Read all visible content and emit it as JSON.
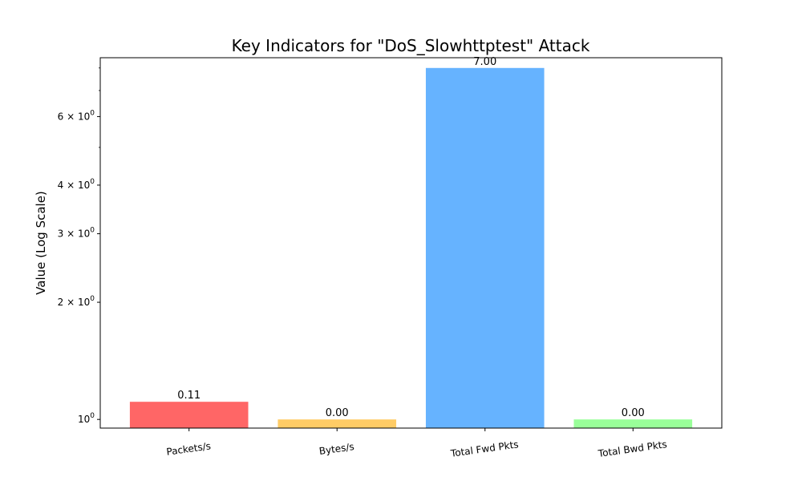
{
  "chart_data": {
    "type": "bar",
    "title": "Key Indicators for \"DoS_Slowhttptest\" Attack",
    "xlabel": "",
    "ylabel": "Value (Log Scale)",
    "yscale": "log",
    "ylim": [
      0.95,
      8.5
    ],
    "grid": false,
    "categories": [
      "Packets/s",
      "Bytes/s",
      "Total Fwd Pkts",
      "Total Bwd Pkts"
    ],
    "bar_heights": [
      1.11,
      1.0,
      8.0,
      1.0
    ],
    "values": [
      0.11,
      0.0,
      7.0,
      0.0
    ],
    "data_labels": [
      "0.11",
      "0.00",
      "7.00",
      "0.00"
    ],
    "colors": [
      "#ff6666",
      "#ffcc66",
      "#66b3ff",
      "#99ff99"
    ],
    "yticks": [
      {
        "base": "10",
        "mantissa": "",
        "exp": "0",
        "value": 1
      },
      {
        "base": "10",
        "mantissa": "2 × ",
        "exp": "0",
        "value": 2
      },
      {
        "base": "10",
        "mantissa": "3 × ",
        "exp": "0",
        "value": 3
      },
      {
        "base": "10",
        "mantissa": "4 × ",
        "exp": "0",
        "value": 4
      },
      {
        "base": "10",
        "mantissa": "6 × ",
        "exp": "0",
        "value": 6
      }
    ],
    "minor_ticks": [
      5,
      7,
      8
    ]
  }
}
